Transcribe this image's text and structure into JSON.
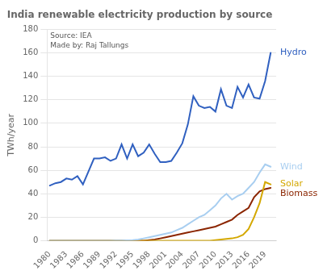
{
  "chart_data": {
    "type": "line",
    "title": "India renewable electricity production by source",
    "ylabel": "TWh/year",
    "annotations": [
      {
        "text": "Source: IEA\nMade by: Raj Tallungs"
      }
    ],
    "x": [
      1980,
      1981,
      1982,
      1983,
      1984,
      1985,
      1986,
      1987,
      1988,
      1989,
      1990,
      1991,
      1992,
      1993,
      1994,
      1995,
      1996,
      1997,
      1998,
      1999,
      2000,
      2001,
      2002,
      2003,
      2004,
      2005,
      2006,
      2007,
      2008,
      2009,
      2010,
      2011,
      2012,
      2013,
      2014,
      2015,
      2016,
      2017,
      2018,
      2019,
      2020
    ],
    "series": [
      {
        "name": "Hydro",
        "color": "#3060c0",
        "values": [
          47,
          49,
          50,
          53,
          52,
          55,
          48,
          59,
          70,
          70,
          71,
          68,
          70,
          82,
          70,
          82,
          72,
          75,
          82,
          74,
          67,
          67,
          68,
          75,
          83,
          99,
          123,
          115,
          113,
          114,
          110,
          129,
          115,
          113,
          131,
          122,
          133,
          122,
          121,
          136,
          160
        ]
      },
      {
        "name": "Wind",
        "color": "#a8cef0",
        "values": [
          0,
          0,
          0,
          0,
          0,
          0,
          0,
          0,
          0,
          0,
          0,
          0,
          0.1,
          0.2,
          0.3,
          0.5,
          1,
          2,
          3,
          4,
          5,
          6,
          7,
          9,
          11,
          14,
          17,
          20,
          22,
          26,
          30,
          36,
          40,
          35,
          38,
          40,
          45,
          50,
          58,
          65,
          63
        ]
      },
      {
        "name": "Solar",
        "color": "#d4a800",
        "values": [
          0,
          0,
          0,
          0,
          0,
          0,
          0,
          0,
          0,
          0,
          0,
          0,
          0,
          0,
          0,
          0,
          0,
          0,
          0,
          0,
          0,
          0,
          0,
          0,
          0,
          0,
          0,
          0,
          0,
          0,
          0.5,
          1,
          1.5,
          2,
          3,
          5,
          10,
          20,
          32,
          50,
          48
        ]
      },
      {
        "name": "Biomass",
        "color": "#8b2500",
        "values": [
          0,
          0,
          0,
          0,
          0,
          0,
          0,
          0,
          0,
          0,
          0,
          0,
          0,
          0,
          0,
          0,
          0,
          0,
          0.5,
          1,
          2,
          3,
          4,
          5,
          6,
          7,
          8,
          9,
          10,
          11,
          12,
          14,
          16,
          18,
          22,
          25,
          28,
          37,
          42,
          44,
          45
        ]
      }
    ],
    "xlim": [
      1979.5,
      2021
    ],
    "xticks": [
      1980,
      1983,
      1986,
      1989,
      1992,
      1995,
      1998,
      2001,
      2004,
      2007,
      2010,
      2013,
      2016,
      2019
    ],
    "ylim": [
      0,
      180
    ],
    "yticks": [
      0,
      20,
      40,
      60,
      80,
      100,
      120,
      140,
      160,
      180
    ],
    "grid": "y"
  }
}
